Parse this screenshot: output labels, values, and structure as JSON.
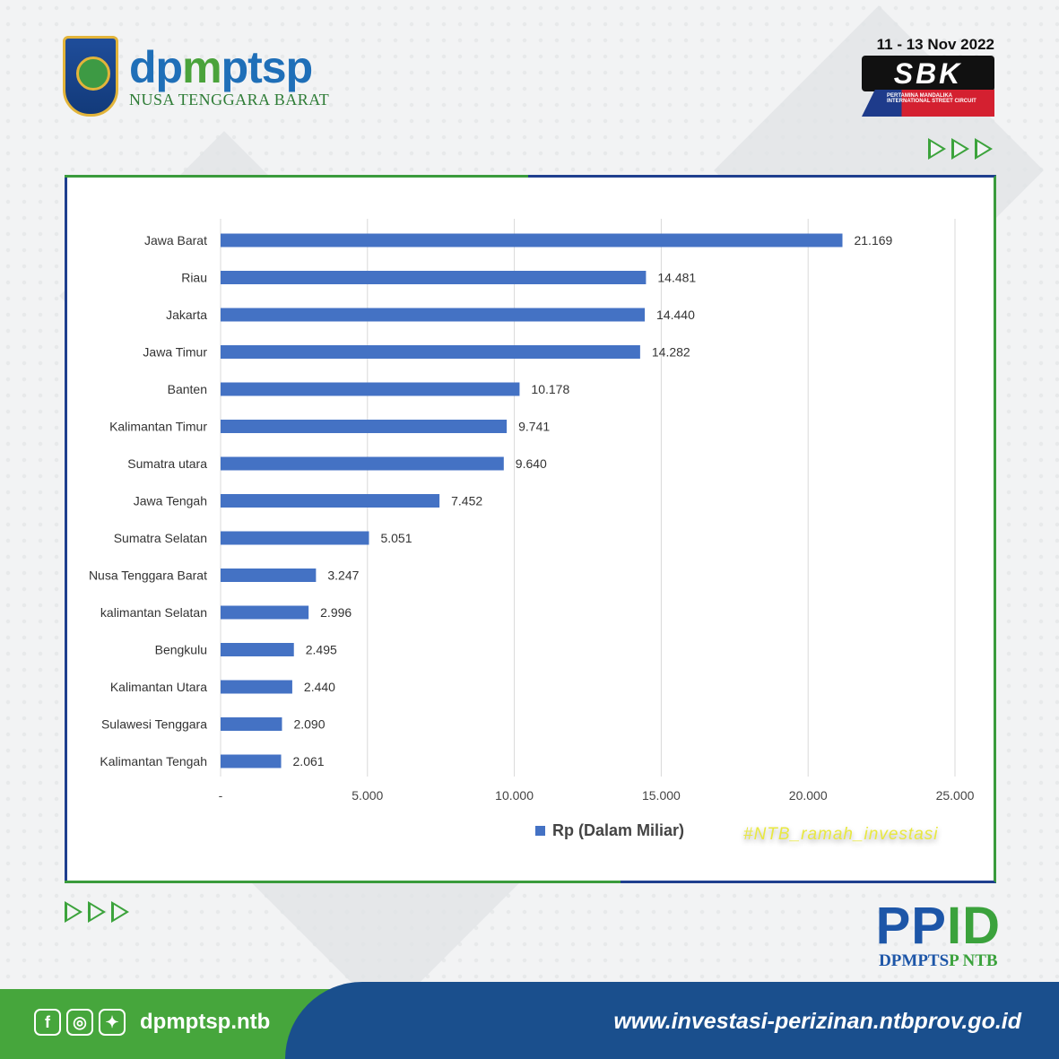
{
  "header": {
    "brand_main": "dp",
    "brand_mid": "m",
    "brand_end": "ptsp",
    "brand_sub": "NUSA TENGGARA BARAT",
    "event_date": "11 - 13 Nov 2022",
    "event_logo": "SBK",
    "event_sub": "PERTAMINA MANDALIKA INTERNATIONAL STREET CIRCUIT"
  },
  "chart_data": {
    "type": "bar",
    "orientation": "horizontal",
    "categories": [
      "Jawa Barat",
      "Riau",
      "Jakarta",
      "Jawa Timur",
      "Banten",
      "Kalimantan Timur",
      "Sumatra utara",
      "Jawa Tengah",
      "Sumatra Selatan",
      "Nusa Tenggara Barat",
      "kalimantan Selatan",
      "Bengkulu",
      "Kalimantan Utara",
      "Sulawesi Tenggara",
      "Kalimantan Tengah"
    ],
    "series": [
      {
        "name": "Rp (Dalam Miliar)",
        "values": [
          21169,
          14481,
          14440,
          14282,
          10178,
          9741,
          9640,
          7452,
          5051,
          3247,
          2996,
          2495,
          2440,
          2090,
          2061
        ],
        "labels": [
          "21.169",
          "14.481",
          "14.440",
          "14.282",
          "10.178",
          "9.741",
          "9.640",
          "7.452",
          "5.051",
          "3.247",
          "2.996",
          "2.495",
          "2.440",
          "2.090",
          "2.061"
        ]
      }
    ],
    "xlim": [
      0,
      25000
    ],
    "xticks": [
      0,
      5000,
      10000,
      15000,
      20000,
      25000
    ],
    "xtick_labels": [
      "-",
      "5.000",
      "10.000",
      "15.000",
      "20.000",
      "25.000"
    ],
    "grid": true,
    "legend": "bottom",
    "colors": {
      "bar": "#4472c4",
      "grid": "#d9d9d9"
    }
  },
  "chart": {
    "legend_label": "Rp (Dalam Miliar)",
    "hashtag": "#NTB_ramah_investasi"
  },
  "ppid": {
    "title_a": "PP",
    "title_b": "ID",
    "sub_a": "DPMPTS",
    "sub_b": "P NTB"
  },
  "footer": {
    "icons": [
      "facebook-icon",
      "instagram-icon",
      "twitter-icon"
    ],
    "handle": "dpmptsp.ntb",
    "website": "www.investasi-perizinan.ntbprov.go.id"
  }
}
